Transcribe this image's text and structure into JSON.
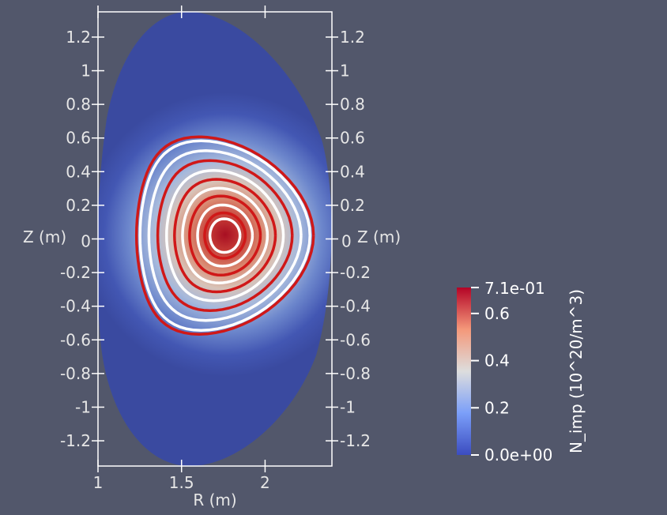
{
  "chart_data": {
    "type": "heatmap",
    "title": "",
    "xlabel": "R (m)",
    "ylabel": "Z (m)",
    "xlim": [
      1.0,
      2.4
    ],
    "ylim": [
      -1.35,
      1.35
    ],
    "x_ticks": [
      1,
      1.5,
      2
    ],
    "y_ticks": [
      1.2,
      1,
      0.8,
      0.6,
      0.4,
      0.2,
      0,
      -0.2,
      -0.4,
      -0.6,
      -0.8,
      -1,
      -1.2
    ],
    "x_tick_labels": [
      "1",
      "1.5",
      "2"
    ],
    "y_tick_labels": [
      "1.2",
      "1",
      "0.8",
      "0.6",
      "0.4",
      "0.2",
      "0",
      "-0.2",
      "-0.4",
      "-0.6",
      "-0.8",
      "-1",
      "-1.2"
    ],
    "field": "N_imp",
    "units": "10^20/m^3",
    "colorbar": {
      "title": "N_imp (10^20/m^3)",
      "min": 0.0,
      "max": 0.71,
      "min_label": "0.0e+00",
      "max_label": "7.1e-01",
      "ticks": [
        0.2,
        0.4,
        0.6
      ],
      "tick_labels": [
        "0.2",
        "0.4",
        "0.6"
      ],
      "colormap": "cool-to-warm",
      "colors": {
        "low": "#3b4cc0",
        "mid": "#dddddd",
        "high": "#b40426"
      }
    },
    "peak": {
      "R": 1.76,
      "Z": 0.02,
      "value": 0.71
    },
    "contour_colors": [
      "#ffffff",
      "#d01818"
    ],
    "background": "#52576b",
    "grid": false
  }
}
